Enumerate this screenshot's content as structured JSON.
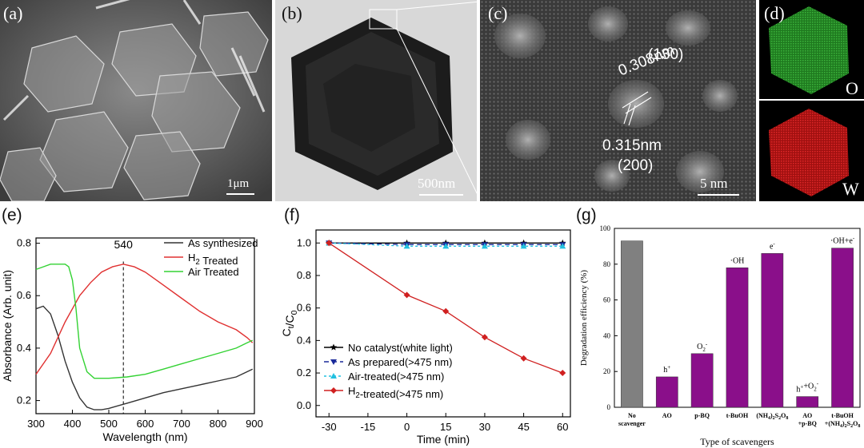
{
  "panels": {
    "a": {
      "label": "(a)",
      "scale": "1μm"
    },
    "b": {
      "label": "(b)",
      "scale": "500nm"
    },
    "c": {
      "label": "(c)",
      "scale": "5 nm",
      "ann1": "(130)",
      "ann2": "0.308nm",
      "ann3": "0.315nm",
      "ann4": "(200)"
    },
    "d": {
      "label": "(d)",
      "el1": "O",
      "el2": "W",
      "el1_color": "#2a9a2a",
      "el2_color": "#d01818"
    },
    "e": {
      "label": "(e)"
    },
    "f": {
      "label": "(f)"
    },
    "g": {
      "label": "(g)"
    }
  },
  "chart_data": [
    {
      "id": "e",
      "type": "line",
      "xlabel": "Wavelength (nm)",
      "ylabel": "Absorbance (Arb. unit)",
      "xlim": [
        300,
        900
      ],
      "ylim": [
        0.15,
        0.82
      ],
      "xticks": [
        300,
        400,
        500,
        600,
        700,
        800,
        900
      ],
      "yticks": [
        0.2,
        0.4,
        0.6,
        0.8
      ],
      "annotation": "540",
      "annotation_x": 540,
      "legend": "top-right",
      "series": [
        {
          "name": "As synthesized",
          "color": "#333333",
          "x": [
            300,
            320,
            340,
            360,
            380,
            400,
            420,
            440,
            460,
            480,
            500,
            550,
            600,
            650,
            700,
            750,
            800,
            850,
            880,
            895
          ],
          "y": [
            0.55,
            0.56,
            0.53,
            0.45,
            0.35,
            0.27,
            0.21,
            0.175,
            0.165,
            0.165,
            0.17,
            0.19,
            0.21,
            0.23,
            0.245,
            0.26,
            0.275,
            0.29,
            0.31,
            0.32
          ]
        },
        {
          "name": "H2 Treated",
          "color": "#e03030",
          "x": [
            300,
            320,
            340,
            360,
            380,
            400,
            420,
            450,
            480,
            510,
            540,
            570,
            600,
            650,
            700,
            750,
            800,
            850,
            880,
            895
          ],
          "y": [
            0.3,
            0.34,
            0.38,
            0.44,
            0.5,
            0.55,
            0.6,
            0.65,
            0.69,
            0.71,
            0.72,
            0.71,
            0.69,
            0.64,
            0.59,
            0.54,
            0.5,
            0.47,
            0.44,
            0.42
          ]
        },
        {
          "name": "Air Treated",
          "color": "#33d233",
          "x": [
            300,
            320,
            340,
            360,
            380,
            390,
            400,
            410,
            420,
            440,
            460,
            480,
            500,
            550,
            600,
            650,
            700,
            750,
            800,
            850,
            880,
            895
          ],
          "y": [
            0.7,
            0.71,
            0.72,
            0.72,
            0.72,
            0.71,
            0.66,
            0.55,
            0.4,
            0.31,
            0.285,
            0.285,
            0.285,
            0.29,
            0.3,
            0.32,
            0.34,
            0.36,
            0.38,
            0.4,
            0.42,
            0.43
          ]
        }
      ]
    },
    {
      "id": "f",
      "type": "line",
      "xlabel": "Time (min)",
      "ylabel": "Ct/C0",
      "xlim": [
        -35,
        63
      ],
      "ylim": [
        -0.07,
        1.08
      ],
      "xticks": [
        -30,
        -15,
        0,
        15,
        30,
        45,
        60
      ],
      "yticks": [
        0.0,
        0.2,
        0.4,
        0.6,
        0.8,
        1.0
      ],
      "legend": "bottom-left",
      "series": [
        {
          "name": "No catalyst(white light)",
          "color": "#000000",
          "marker": "star",
          "x": [
            -30,
            0,
            15,
            30,
            45,
            60
          ],
          "y": [
            1.0,
            1.0,
            1.0,
            1.0,
            1.0,
            1.0
          ]
        },
        {
          "name": "As prepared(>475 nm)",
          "color": "#1a2a9a",
          "marker": "tri-down",
          "dash": "6,4",
          "x": [
            -30,
            0,
            15,
            30,
            45,
            60
          ],
          "y": [
            1.0,
            0.99,
            0.99,
            0.99,
            0.99,
            0.99
          ]
        },
        {
          "name": "Air-treated(>475 nm)",
          "color": "#22c0e0",
          "marker": "tri-up",
          "dash": "3,3",
          "x": [
            -30,
            0,
            15,
            30,
            45,
            60
          ],
          "y": [
            1.0,
            0.98,
            0.98,
            0.98,
            0.98,
            0.98
          ]
        },
        {
          "name": "H2-treated(>475 nm)",
          "color": "#d02020",
          "marker": "diamond",
          "x": [
            -30,
            0,
            15,
            30,
            45,
            60
          ],
          "y": [
            1.0,
            0.68,
            0.58,
            0.42,
            0.29,
            0.2
          ]
        }
      ]
    },
    {
      "id": "g",
      "type": "bar",
      "xlabel": "Type of scavengers",
      "ylabel": "Degradation efficiency (%)",
      "ylim": [
        0,
        100
      ],
      "yticks": [
        0,
        20,
        40,
        60,
        80,
        100
      ],
      "categories": [
        "No scavenger",
        "AO",
        "p-BQ",
        "t-BuOH",
        "(NH4)2S2O8",
        "AO +p-BQ",
        "t-BuOH +(NH4)2S2O8"
      ],
      "values": [
        93,
        17,
        30,
        78,
        86,
        6,
        89
      ],
      "colors": [
        "#808080",
        "#8a0f8a",
        "#8a0f8a",
        "#8a0f8a",
        "#8a0f8a",
        "#8a0f8a",
        "#8a0f8a"
      ],
      "bar_labels": [
        "",
        "h+",
        "O2-",
        "·OH",
        "e-",
        "h++O2-",
        "·OH+e-"
      ]
    }
  ]
}
